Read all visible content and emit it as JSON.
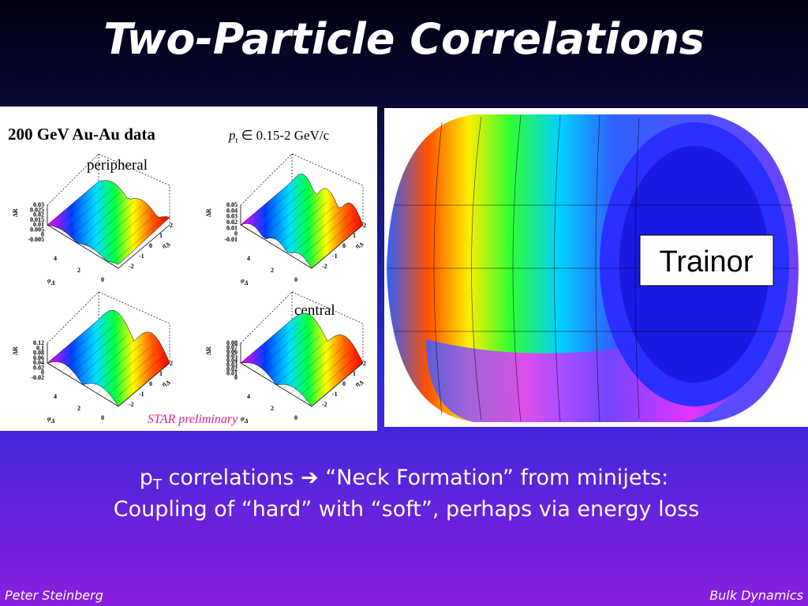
{
  "header": {
    "title": "Two-Particle Correlations"
  },
  "figure": {
    "dataset": "200 GeV Au-Au data",
    "cut": {
      "symbol": "p",
      "subscript": "t",
      "range": "∈ 0.15-2 GeV/c"
    },
    "labels": {
      "peripheral": "peripheral",
      "central": "central",
      "preliminary": "STAR preliminary"
    },
    "panels": [
      {
        "y_label": "ΔR",
        "y_ticks": [
          "0.03",
          "0.025",
          "0.02",
          "0.015",
          "0.01",
          "0.005",
          "0",
          "-0.005"
        ],
        "phi_label": "φ",
        "phi_sub": "Δ",
        "phi_ticks": [
          "4",
          "2",
          "0"
        ],
        "eta_label": "η",
        "eta_sub": "Δ",
        "eta_ticks": [
          "2",
          "1",
          "0",
          "-1",
          "-2"
        ]
      },
      {
        "y_label": "ΔR",
        "y_ticks": [
          "0.05",
          "0.04",
          "0.03",
          "0.02",
          "0.01",
          "0",
          "-0.01"
        ],
        "phi_label": "φ",
        "phi_sub": "Δ",
        "phi_ticks": [
          "4",
          "2",
          "0"
        ],
        "eta_label": "η",
        "eta_sub": "Δ",
        "eta_ticks": [
          "2",
          "1",
          "0",
          "-1",
          "-2"
        ]
      },
      {
        "y_label": "ΔR",
        "y_ticks": [
          "0.12",
          "0.1",
          "0.08",
          "0.06",
          "0.04",
          "0.02",
          "0",
          "-0.02"
        ],
        "phi_label": "φ",
        "phi_sub": "Δ",
        "phi_ticks": [
          "4",
          "2",
          "0"
        ],
        "eta_label": "η",
        "eta_sub": "Δ",
        "eta_ticks": [
          "2",
          "1",
          "0",
          "-1",
          "-2"
        ]
      },
      {
        "y_label": "ΔR",
        "y_ticks": [
          "0.08",
          "0.07",
          "0.06",
          "0.05",
          "0.04",
          "0.03",
          "0.02",
          "0.01",
          "0"
        ],
        "phi_label": "φ",
        "phi_sub": "Δ",
        "phi_ticks": [
          "4",
          "2",
          "0"
        ],
        "eta_label": "η",
        "eta_sub": "Δ",
        "eta_ticks": [
          "2",
          "1",
          "0",
          "-1",
          "-2"
        ]
      }
    ]
  },
  "annotation": "Trainor",
  "caption": {
    "line1": {
      "symbol": "p",
      "subscript": "T",
      "text": " correlations ➔ “Neck Formation” from minijets:"
    },
    "line2": "Coupling of “hard” with “soft”, perhaps via energy loss"
  },
  "footer": {
    "left": "Peter Steinberg",
    "right": "Bulk Dynamics"
  }
}
